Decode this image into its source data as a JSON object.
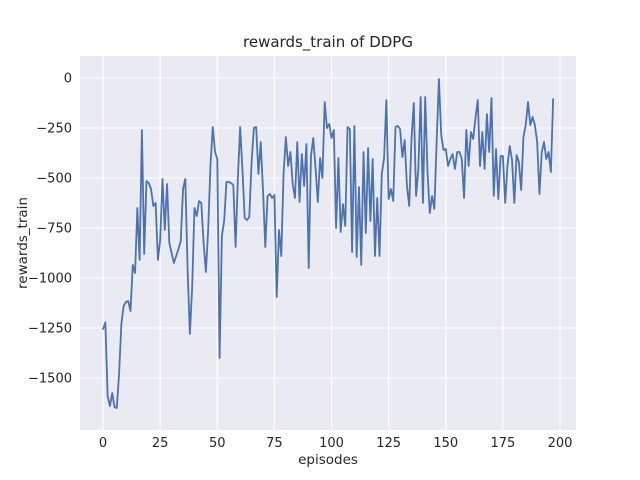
{
  "chart_data": {
    "type": "line",
    "title": "rewards_train of DDPG",
    "xlabel": "episodes",
    "ylabel": "rewards_train",
    "x_ticks": [
      0,
      25,
      50,
      75,
      100,
      125,
      150,
      175,
      200
    ],
    "y_ticks": [
      0,
      -250,
      -500,
      -750,
      -1000,
      -1250,
      -1500
    ],
    "xlim": [
      -10.1,
      207.0
    ],
    "ylim": [
      -1760,
      110
    ],
    "grid": true,
    "legend": "none",
    "colors": {
      "line": "#4c72b0",
      "axes_bg": "#eaeaf2",
      "grid": "#ffffff",
      "text": "#262626",
      "figure_bg": "#ffffff"
    },
    "series": [
      {
        "name": "rewards_train",
        "x_start": 0,
        "x_step": 1,
        "values": [
          -1255,
          -1222,
          -1590,
          -1640,
          -1575,
          -1645,
          -1650,
          -1480,
          -1230,
          -1140,
          -1120,
          -1115,
          -1165,
          -935,
          -975,
          -650,
          -910,
          -260,
          -880,
          -515,
          -525,
          -555,
          -640,
          -625,
          -910,
          -810,
          -505,
          -760,
          -530,
          -825,
          -875,
          -925,
          -890,
          -855,
          -815,
          -555,
          -505,
          -960,
          -1280,
          -1045,
          -650,
          -690,
          -615,
          -625,
          -825,
          -970,
          -760,
          -440,
          -245,
          -370,
          -405,
          -1400,
          -790,
          -715,
          -520,
          -520,
          -525,
          -535,
          -845,
          -500,
          -245,
          -460,
          -700,
          -710,
          -695,
          -420,
          -250,
          -245,
          -480,
          -320,
          -560,
          -845,
          -590,
          -580,
          -600,
          -585,
          -1095,
          -760,
          -890,
          -480,
          -295,
          -440,
          -370,
          -530,
          -600,
          -320,
          -620,
          -380,
          -540,
          -330,
          -950,
          -390,
          -300,
          -450,
          -620,
          -400,
          -500,
          -120,
          -250,
          -230,
          -300,
          -260,
          -750,
          -400,
          -770,
          -630,
          -740,
          -245,
          -255,
          -870,
          -240,
          -895,
          -545,
          -935,
          -370,
          -775,
          -350,
          -715,
          -405,
          -890,
          -600,
          -890,
          -480,
          -400,
          -110,
          -605,
          -555,
          -615,
          -245,
          -240,
          -255,
          -395,
          -310,
          -540,
          -640,
          -305,
          -125,
          -590,
          -455,
          -95,
          -625,
          -95,
          -470,
          -675,
          -590,
          -655,
          -320,
          -5,
          -285,
          -360,
          -355,
          -440,
          -405,
          -380,
          -455,
          -370,
          -370,
          -405,
          -600,
          -260,
          -440,
          -270,
          -305,
          -200,
          -110,
          -440,
          -270,
          -455,
          -180,
          -370,
          -100,
          -590,
          -355,
          -605,
          -390,
          -390,
          -625,
          -440,
          -340,
          -410,
          -625,
          -385,
          -420,
          -560,
          -295,
          -235,
          -120,
          -235,
          -195,
          -235,
          -320,
          -580,
          -370,
          -320,
          -405,
          -370,
          -470,
          -105
        ]
      }
    ]
  }
}
